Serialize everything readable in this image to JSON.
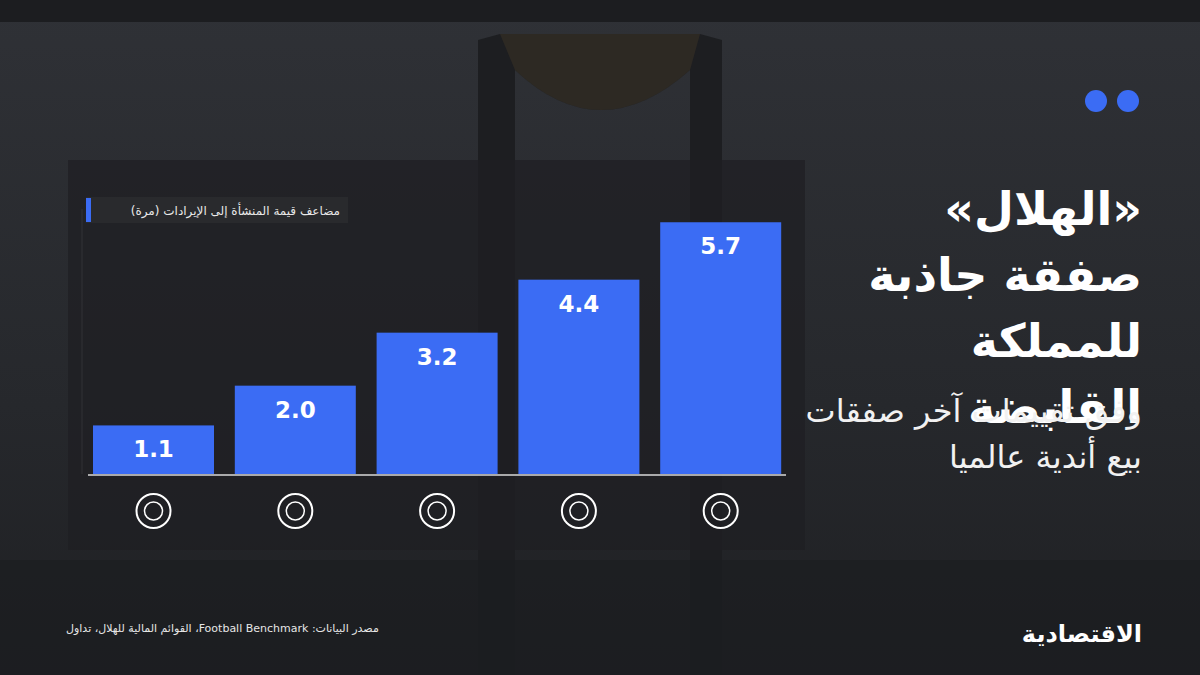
{
  "chart_data": {
    "type": "bar",
    "title": "«الهلال» صفقة جاذبة للمملكة القابضة",
    "subtitle": "وفق تقييمات آخر صفقات بيع أندية عالميا",
    "ylabel": "مضاعف قيمة المنشأة إلى الإيرادات (مرة)",
    "source": "مصدر البيانات: Football Benchmark، القوائم المالية للهلال، تداول",
    "publisher": "الاقتصادية",
    "categories": [
      null,
      null,
      null,
      null,
      null
    ],
    "values": [
      1.1,
      2.0,
      3.2,
      4.4,
      5.7
    ],
    "value_labels": [
      "1.1",
      "2.0",
      "3.2",
      "4.4",
      "5.7"
    ],
    "color": "#3b6cf4",
    "ylim": [
      0,
      6
    ],
    "data_labels": true,
    "tick_labels": false,
    "grid": false
  }
}
